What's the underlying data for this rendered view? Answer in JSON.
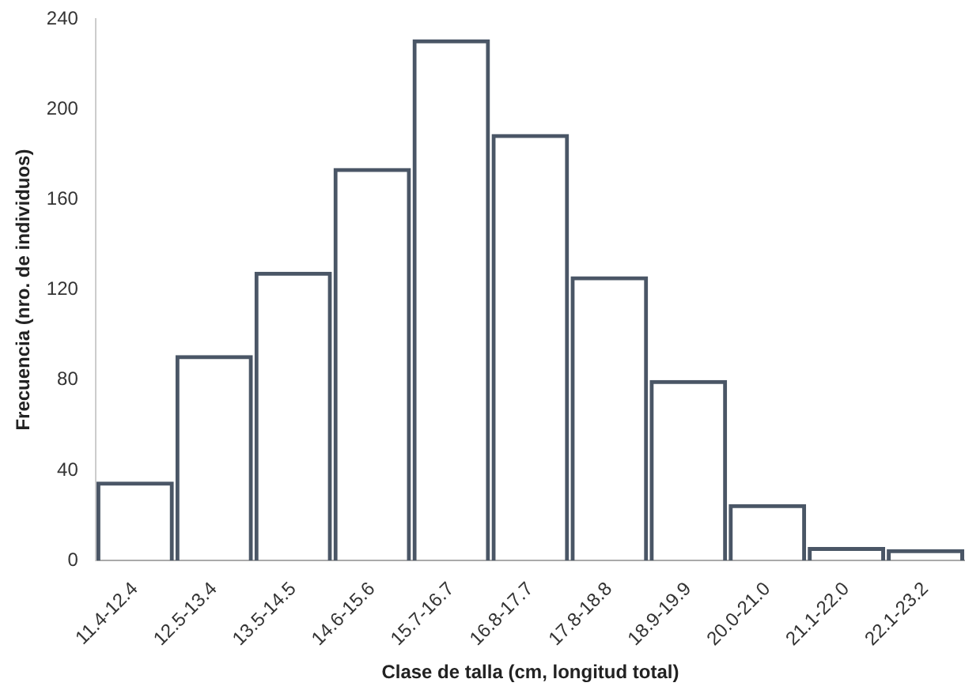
{
  "chart_data": {
    "type": "bar",
    "xlabel": "Clase de talla (cm, longitud total)",
    "ylabel": "Frecuencia (nro. de individuos)",
    "categories": [
      "11.4-12.4",
      "12.5-13.4",
      "13.5-14.5",
      "14.6-15.6",
      "15.7-16.7",
      "16.8-17.7",
      "17.8-18.8",
      "18.9-19.9",
      "20.0-21.0",
      "21.1-22.0",
      "22.1-23.2"
    ],
    "values": [
      35,
      91,
      128,
      174,
      231,
      189,
      126,
      80,
      25,
      6,
      5
    ],
    "color": "#4a5666",
    "ylim": [
      0,
      240
    ],
    "yticks": [
      0,
      40,
      80,
      120,
      160,
      200,
      240
    ],
    "grid": false,
    "legend": false
  }
}
